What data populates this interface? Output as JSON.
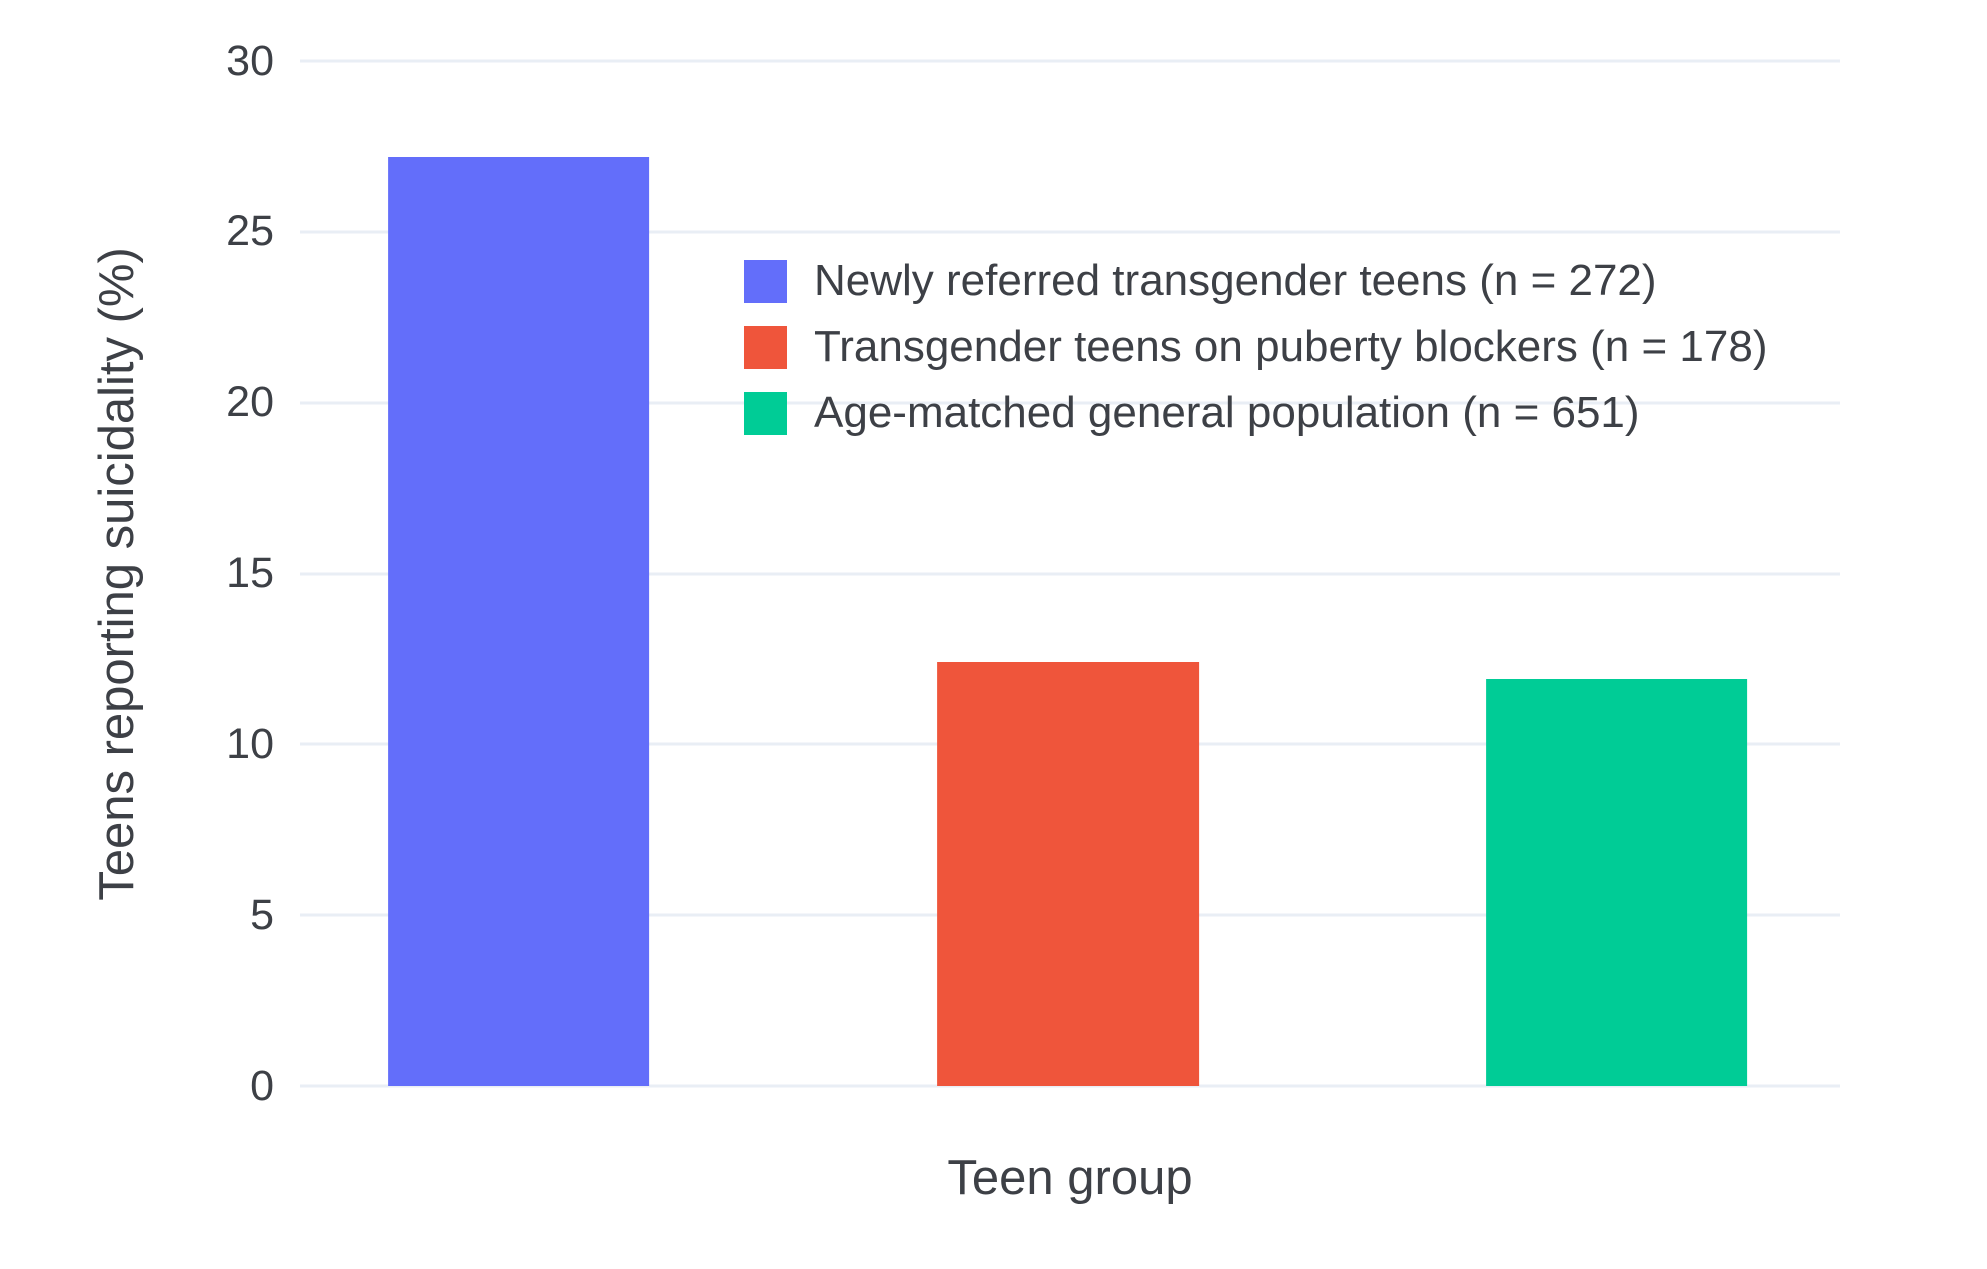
{
  "chart_data": {
    "type": "bar",
    "title": "",
    "xlabel": "Teen group",
    "ylabel": "Teens reporting suicidality (%)",
    "categories": [
      "Newly referred transgender teens (n = 272)",
      "Transgender teens on puberty blockers (n = 178)",
      "Age-matched general population (n = 651)"
    ],
    "values": [
      27.2,
      12.4,
      11.9
    ],
    "colors": [
      "#636EFA",
      "#EF553B",
      "#00CC96"
    ],
    "ylim": [
      0,
      30
    ],
    "yticks": [
      0,
      5,
      10,
      15,
      20,
      25,
      30
    ],
    "grid": true,
    "legend": {
      "position": "inside-top-left",
      "entries": [
        {
          "label": "Newly referred transgender teens (n = 272)",
          "color": "#636EFA"
        },
        {
          "label": "Transgender teens on puberty blockers (n = 178)",
          "color": "#EF553B"
        },
        {
          "label": "Age-matched general population (n = 651)",
          "color": "#00CC96"
        }
      ]
    },
    "gridline_color": "#E9EEF5",
    "text_color": "#3D4046",
    "background": "#FFFFFF"
  }
}
